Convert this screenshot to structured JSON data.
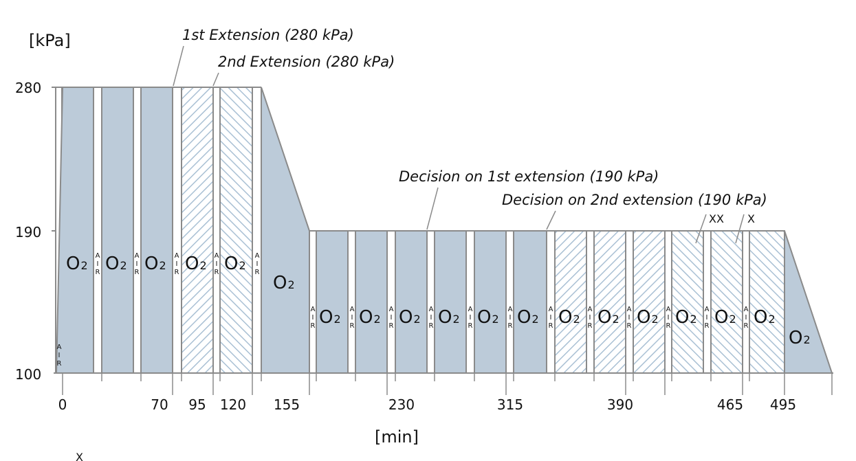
{
  "chart_data": {
    "type": "diagram",
    "y_unit": "[kPa]",
    "x_unit": "[min]",
    "y_ticks": [
      "280",
      "190",
      "100"
    ],
    "x_ticks": [
      "0",
      "70",
      "95",
      "120",
      "155",
      "230",
      "315",
      "390",
      "465",
      "495"
    ],
    "oxygen_label": "O",
    "oxygen_sub": "2",
    "air_letters": [
      "A",
      "I",
      "R"
    ],
    "annotations": {
      "first_extension": "1st Extension (280 kPa)",
      "second_extension": "2nd Extension (280 kPa)",
      "decision_first": "Decision on 1st extension (190 kPa)",
      "decision_second": "Decision on 2nd extension (190 kPa)",
      "mark_xx": "XX",
      "mark_x": "X",
      "footer_mark": "X"
    },
    "colors": {
      "oxygen_fill": "#bccbd9",
      "hatch_stroke": "#a9c0d4",
      "outline": "#8a8a8a"
    }
  }
}
